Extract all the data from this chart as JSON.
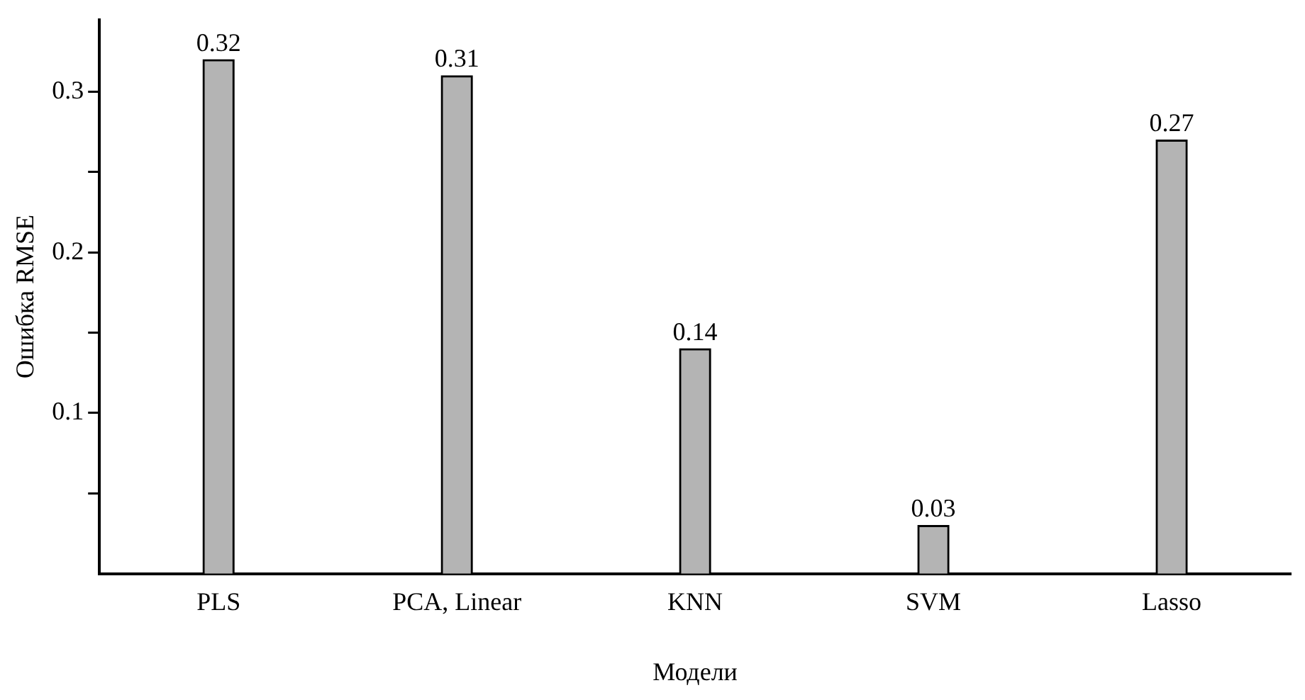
{
  "chart_data": {
    "type": "bar",
    "xlabel": "Модели",
    "ylabel": "Ошибка RMSE",
    "categories": [
      "PLS",
      "PCA, Linear",
      "KNN",
      "SVM",
      "Lasso"
    ],
    "values": [
      0.32,
      0.31,
      0.14,
      0.03,
      0.27
    ],
    "color": "#b4b4b4",
    "ylim": [
      0,
      0.345
    ],
    "yticks": [
      {
        "value": 0.05,
        "label": null
      },
      0.1,
      {
        "value": 0.15,
        "label": null
      },
      0.2,
      {
        "value": 0.25,
        "label": null
      },
      0.3
    ],
    "grid": false,
    "legend": false,
    "data_labels": true
  }
}
